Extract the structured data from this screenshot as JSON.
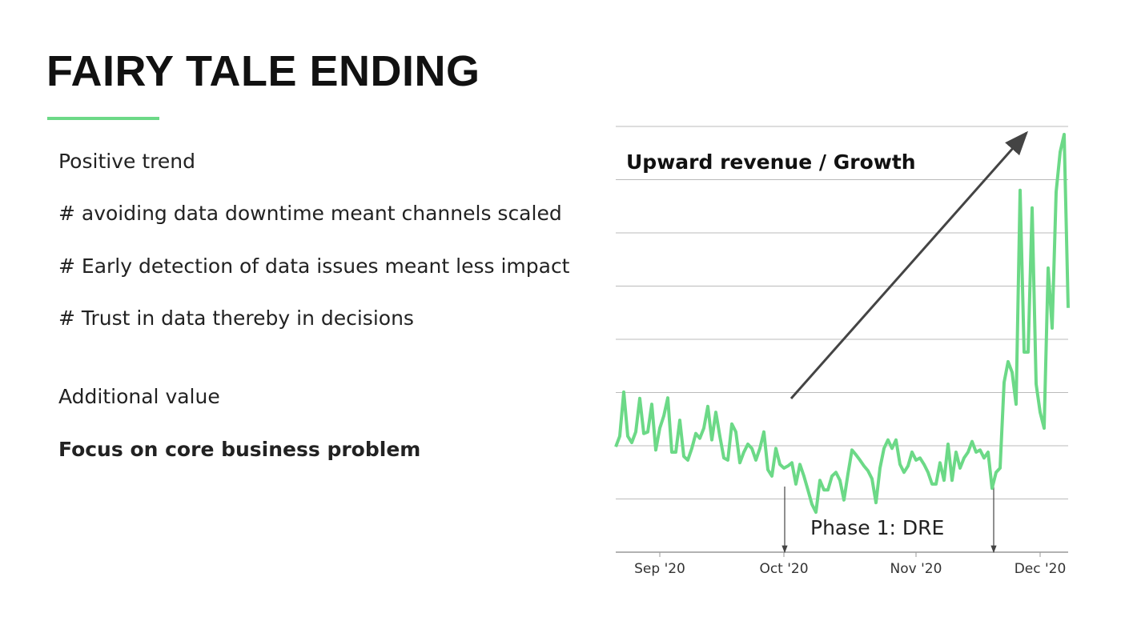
{
  "slide": {
    "title": "FAIRY TALE ENDING",
    "bullets": [
      "Positive trend",
      "# avoiding data downtime meant channels scaled",
      "# Early detection of data issues meant less impact",
      "# Trust in data thereby in decisions"
    ],
    "subheading": "Additional value",
    "emphasis": "Focus on core business problem"
  },
  "chart_data": {
    "type": "line",
    "annotations": [
      "Upward revenue / Growth",
      "Phase 1: DRE"
    ],
    "color": "#6cd987",
    "x": [
      0,
      1,
      2,
      3,
      4,
      5,
      6,
      7,
      8,
      9,
      10,
      11,
      12,
      13,
      14,
      15,
      16,
      17,
      18,
      19,
      20,
      21,
      22,
      23,
      24,
      25,
      26,
      27,
      28,
      29,
      30,
      31,
      32,
      33,
      34,
      35,
      36,
      37,
      38,
      39,
      40,
      41,
      42,
      43,
      44,
      45,
      46,
      47,
      48,
      49,
      50,
      51,
      52,
      53,
      54,
      55,
      56,
      57,
      58,
      59,
      60,
      61,
      62,
      63,
      64,
      65,
      66,
      67,
      68,
      69,
      70,
      71,
      72,
      73,
      74,
      75,
      76,
      77,
      78,
      79,
      80,
      81,
      82,
      83,
      84,
      85,
      86,
      87,
      88,
      89,
      90,
      91,
      92,
      93,
      94,
      95,
      96,
      97,
      98,
      99,
      100,
      101,
      102,
      103,
      104,
      105,
      106,
      107,
      108,
      109,
      110,
      111,
      112,
      113
    ],
    "values": [
      1.98,
      2.18,
      3.01,
      2.18,
      2.06,
      2.26,
      2.89,
      2.23,
      2.26,
      2.78,
      1.92,
      2.33,
      2.56,
      2.9,
      1.88,
      1.88,
      2.48,
      1.8,
      1.73,
      1.95,
      2.23,
      2.14,
      2.33,
      2.74,
      2.11,
      2.63,
      2.18,
      1.77,
      1.73,
      2.41,
      2.26,
      1.68,
      1.88,
      2.03,
      1.95,
      1.73,
      1.95,
      2.26,
      1.55,
      1.43,
      1.95,
      1.65,
      1.58,
      1.62,
      1.68,
      1.28,
      1.65,
      1.43,
      1.17,
      0.9,
      0.75,
      1.35,
      1.17,
      1.17,
      1.43,
      1.5,
      1.35,
      0.98,
      1.47,
      1.92,
      1.83,
      1.73,
      1.62,
      1.53,
      1.38,
      0.93,
      1.58,
      1.95,
      2.11,
      1.95,
      2.11,
      1.65,
      1.5,
      1.62,
      1.88,
      1.73,
      1.77,
      1.65,
      1.5,
      1.28,
      1.28,
      1.68,
      1.35,
      2.03,
      1.35,
      1.88,
      1.58,
      1.77,
      1.88,
      2.08,
      1.88,
      1.92,
      1.77,
      1.88,
      1.2,
      1.5,
      1.58,
      3.19,
      3.58,
      3.38,
      2.78,
      6.8,
      3.76,
      3.76,
      6.47,
      3.16,
      2.63,
      2.33,
      5.34,
      4.21,
      6.77,
      7.52,
      7.85,
      4.59
    ],
    "xlim": [
      0,
      113
    ],
    "xticks": [
      {
        "value": 11,
        "label": "Sep '20"
      },
      {
        "value": 42,
        "label": "Oct '20"
      },
      {
        "value": 75,
        "label": "Nov '20"
      },
      {
        "value": 106,
        "label": "Dec '20"
      }
    ],
    "ylim": [
      0,
      8
    ],
    "yticks": [
      0,
      1,
      2,
      3,
      4,
      5,
      6,
      7,
      8
    ],
    "grid": true
  }
}
